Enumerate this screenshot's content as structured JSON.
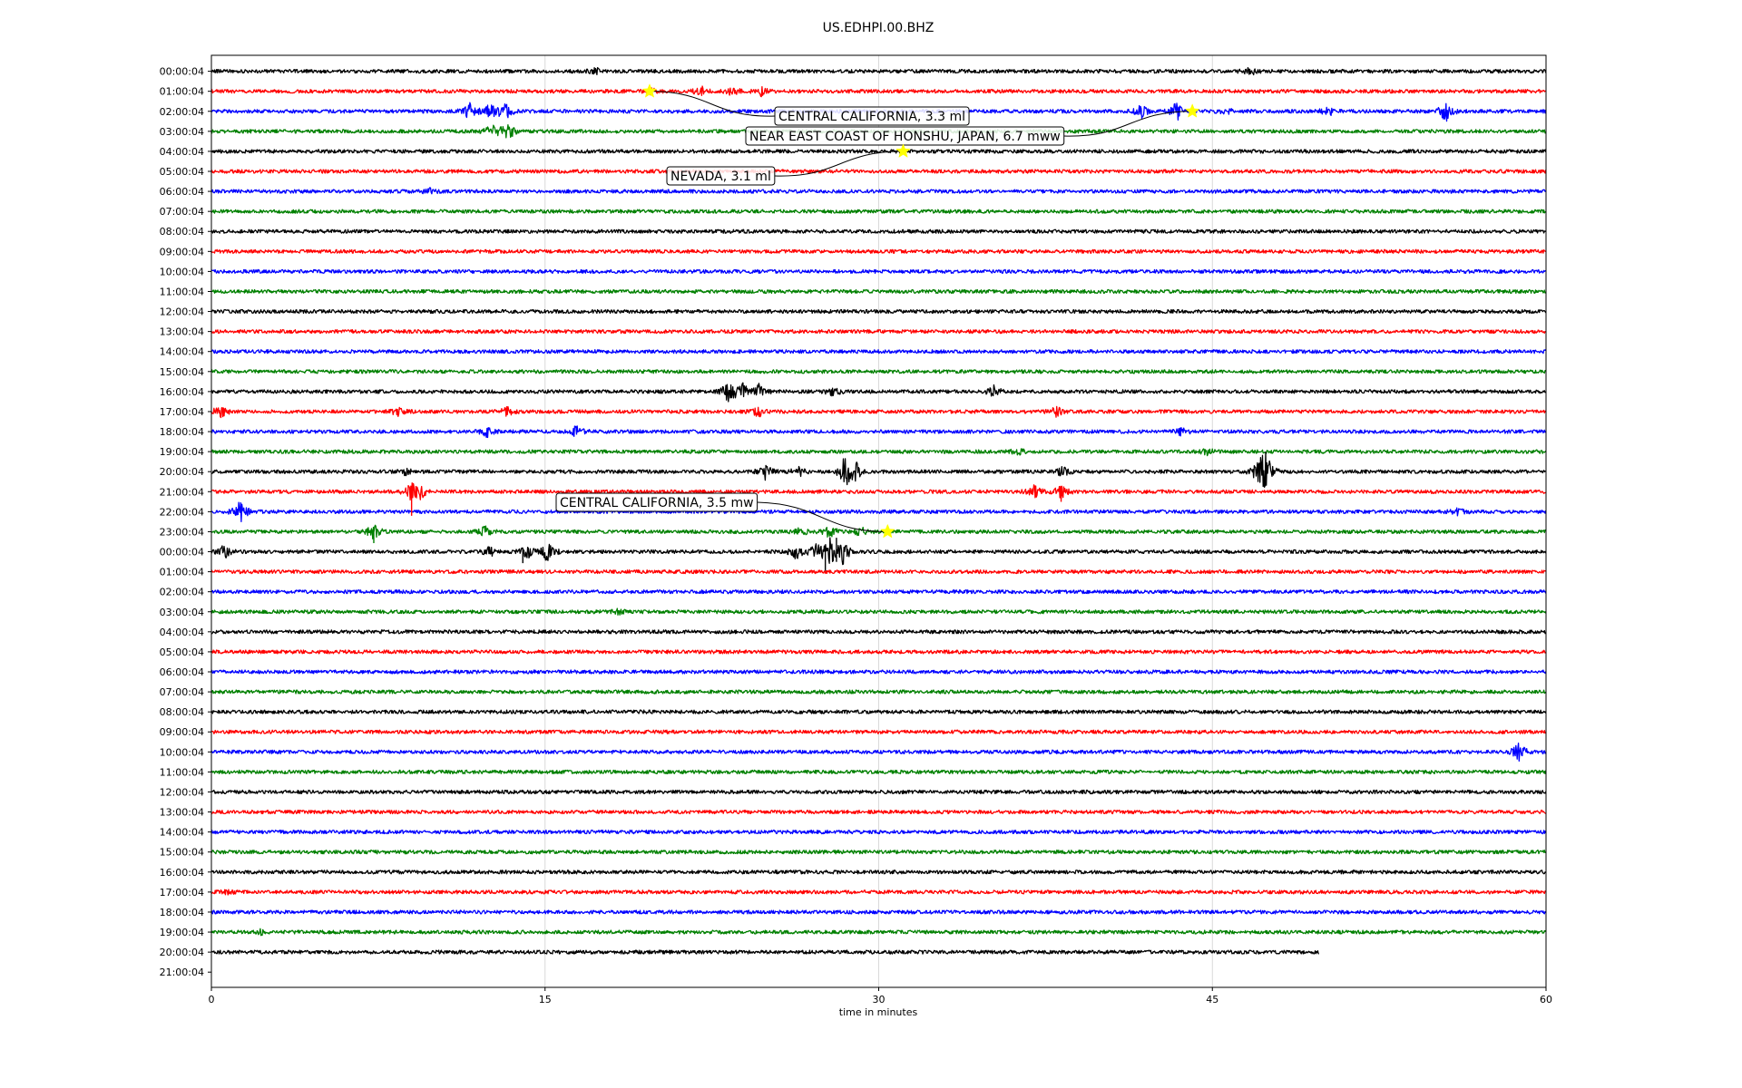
{
  "chart_data": {
    "type": "line",
    "title": "US.EDHPI.00.BHZ",
    "xlabel": "time in minutes",
    "ylabel": "",
    "xlim": [
      0,
      60
    ],
    "xticks": [
      "0",
      "15",
      "30",
      "45",
      "60"
    ],
    "xtick_values": [
      0,
      15,
      30,
      45,
      60
    ],
    "grid": "vertical lines at 15, 30, 45",
    "row_labels": [
      "00:00:04",
      "01:00:04",
      "02:00:04",
      "03:00:04",
      "04:00:04",
      "05:00:04",
      "06:00:04",
      "07:00:04",
      "08:00:04",
      "09:00:04",
      "10:00:04",
      "11:00:04",
      "12:00:04",
      "13:00:04",
      "14:00:04",
      "15:00:04",
      "16:00:04",
      "17:00:04",
      "18:00:04",
      "19:00:04",
      "20:00:04",
      "21:00:04",
      "22:00:04",
      "23:00:04",
      "00:00:04",
      "01:00:04",
      "02:00:04",
      "03:00:04",
      "04:00:04",
      "05:00:04",
      "06:00:04",
      "07:00:04",
      "08:00:04",
      "09:00:04",
      "10:00:04",
      "11:00:04",
      "12:00:04",
      "13:00:04",
      "14:00:04",
      "15:00:04",
      "16:00:04",
      "17:00:04",
      "18:00:04",
      "19:00:04",
      "20:00:04",
      "21:00:04"
    ],
    "trace_colors": [
      "#000000",
      "#ff0000",
      "#0000ff",
      "#008000"
    ],
    "last_trace_end_minute": 49.8,
    "bursts": [
      {
        "row": 0,
        "minute": 17.3,
        "amp": 0.4
      },
      {
        "row": 0,
        "minute": 46.7,
        "amp": 0.5
      },
      {
        "row": 1,
        "minute": 19.7,
        "amp": 0.4
      },
      {
        "row": 1,
        "minute": 22.0,
        "amp": 0.7
      },
      {
        "row": 1,
        "minute": 23.4,
        "amp": 0.6
      },
      {
        "row": 1,
        "minute": 24.7,
        "amp": 0.5
      },
      {
        "row": 2,
        "minute": 11.6,
        "amp": 1.0
      },
      {
        "row": 2,
        "minute": 12.5,
        "amp": 0.9
      },
      {
        "row": 2,
        "minute": 13.2,
        "amp": 1.1
      },
      {
        "row": 2,
        "minute": 41.8,
        "amp": 0.8
      },
      {
        "row": 2,
        "minute": 43.4,
        "amp": 1.2
      },
      {
        "row": 2,
        "minute": 45.6,
        "amp": 0.5
      },
      {
        "row": 2,
        "minute": 50.2,
        "amp": 0.6
      },
      {
        "row": 2,
        "minute": 55.5,
        "amp": 1.3
      },
      {
        "row": 3,
        "minute": 12.6,
        "amp": 0.8
      },
      {
        "row": 3,
        "minute": 13.3,
        "amp": 1.3
      },
      {
        "row": 6,
        "minute": 9.8,
        "amp": 0.3
      },
      {
        "row": 16,
        "minute": 23.2,
        "amp": 1.2
      },
      {
        "row": 16,
        "minute": 23.8,
        "amp": 1.4
      },
      {
        "row": 16,
        "minute": 24.6,
        "amp": 0.9
      },
      {
        "row": 16,
        "minute": 28.0,
        "amp": 0.7
      },
      {
        "row": 16,
        "minute": 35.2,
        "amp": 0.7
      },
      {
        "row": 17,
        "minute": 0.4,
        "amp": 0.8
      },
      {
        "row": 17,
        "minute": 8.4,
        "amp": 0.5
      },
      {
        "row": 17,
        "minute": 13.3,
        "amp": 0.5
      },
      {
        "row": 17,
        "minute": 24.6,
        "amp": 0.6
      },
      {
        "row": 17,
        "minute": 38.0,
        "amp": 0.6
      },
      {
        "row": 18,
        "minute": 12.4,
        "amp": 0.6
      },
      {
        "row": 18,
        "minute": 16.4,
        "amp": 0.8
      },
      {
        "row": 18,
        "minute": 43.6,
        "amp": 0.4
      },
      {
        "row": 19,
        "minute": 36.3,
        "amp": 0.4
      },
      {
        "row": 19,
        "minute": 44.8,
        "amp": 0.4
      },
      {
        "row": 20,
        "minute": 8.7,
        "amp": 0.4
      },
      {
        "row": 20,
        "minute": 24.9,
        "amp": 0.9
      },
      {
        "row": 20,
        "minute": 26.4,
        "amp": 0.6
      },
      {
        "row": 20,
        "minute": 28.5,
        "amp": 2.2
      },
      {
        "row": 20,
        "minute": 29.0,
        "amp": 1.0
      },
      {
        "row": 20,
        "minute": 38.3,
        "amp": 0.7
      },
      {
        "row": 20,
        "minute": 47.1,
        "amp": 1.6
      },
      {
        "row": 20,
        "minute": 47.4,
        "amp": 2.2
      },
      {
        "row": 21,
        "minute": 9.0,
        "amp": 1.0
      },
      {
        "row": 21,
        "minute": 9.4,
        "amp": 0.8
      },
      {
        "row": 21,
        "minute": 37.0,
        "amp": 0.8
      },
      {
        "row": 21,
        "minute": 38.2,
        "amp": 0.9
      },
      {
        "row": 22,
        "minute": 1.3,
        "amp": 1.4
      },
      {
        "row": 22,
        "minute": 56.0,
        "amp": 0.5
      },
      {
        "row": 23,
        "minute": 7.3,
        "amp": 1.0
      },
      {
        "row": 23,
        "minute": 12.3,
        "amp": 0.6
      },
      {
        "row": 23,
        "minute": 26.5,
        "amp": 0.5
      },
      {
        "row": 23,
        "minute": 27.8,
        "amp": 0.8
      },
      {
        "row": 23,
        "minute": 29.2,
        "amp": 0.6
      },
      {
        "row": 24,
        "minute": 0.6,
        "amp": 0.9
      },
      {
        "row": 24,
        "minute": 12.5,
        "amp": 0.6
      },
      {
        "row": 24,
        "minute": 14.2,
        "amp": 0.9
      },
      {
        "row": 24,
        "minute": 15.1,
        "amp": 1.3
      },
      {
        "row": 24,
        "minute": 26.3,
        "amp": 0.9
      },
      {
        "row": 24,
        "minute": 27.2,
        "amp": 1.2
      },
      {
        "row": 24,
        "minute": 27.8,
        "amp": 1.6
      },
      {
        "row": 24,
        "minute": 28.4,
        "amp": 1.5
      },
      {
        "row": 27,
        "minute": 18.3,
        "amp": 0.3
      },
      {
        "row": 34,
        "minute": 58.8,
        "amp": 1.2
      },
      {
        "row": 41,
        "minute": 0.8,
        "amp": 0.3
      },
      {
        "row": 43,
        "minute": 2.2,
        "amp": 0.3
      }
    ],
    "spikes": [
      {
        "row": 21,
        "minute": 9.0,
        "up": 0.3,
        "down": 1.9
      },
      {
        "row": 21,
        "minute": 38.2,
        "up": 0.2,
        "down": 0.8
      },
      {
        "row": 23,
        "minute": 7.3,
        "up": 0.2,
        "down": 0.9
      },
      {
        "row": 24,
        "minute": 14.0,
        "up": 0.3,
        "down": 0.9
      },
      {
        "row": 24,
        "minute": 27.6,
        "up": 0.5,
        "down": 1.5
      },
      {
        "row": 24,
        "minute": 28.1,
        "up": 1.1,
        "down": 0.8
      }
    ],
    "annotations": [
      {
        "label": "CENTRAL CALIFORNIA, 3.3 ml",
        "row": 1,
        "minute": 19.7
      },
      {
        "label": "NEAR EAST COAST OF HONSHU, JAPAN, 6.7 mww",
        "row": 2,
        "minute": 44.1
      },
      {
        "label": "NEVADA, 3.1 ml",
        "row": 4,
        "minute": 31.1
      },
      {
        "label": "CENTRAL CALIFORNIA, 3.5 mw",
        "row": 23,
        "minute": 30.4
      }
    ],
    "marker": {
      "shape": "star",
      "color": "#ffff00"
    }
  }
}
